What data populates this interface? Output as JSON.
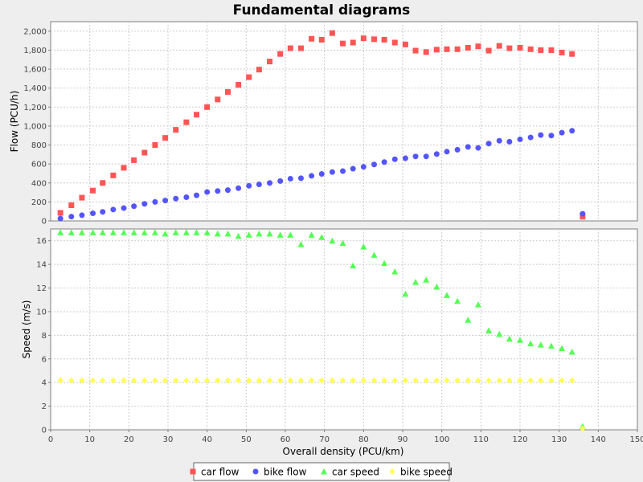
{
  "chart_data": {
    "type": "scatter",
    "title": "Fundamental diagrams",
    "xlabel": "Overall density (PCU/km)",
    "xlim": [
      0,
      150
    ],
    "xticks": [
      0,
      10,
      20,
      30,
      40,
      50,
      60,
      70,
      80,
      90,
      100,
      110,
      120,
      130,
      140,
      150
    ],
    "grid": true,
    "legend_position": "bottom",
    "plots": [
      {
        "ylabel": "Flow (PCU/h)",
        "ylim": [
          0,
          2100
        ],
        "yticks": [
          0,
          200,
          400,
          600,
          800,
          1000,
          1200,
          1400,
          1600,
          1800,
          2000
        ],
        "ytick_labels": [
          "0",
          "200",
          "400",
          "600",
          "800",
          "1,000",
          "1,200",
          "1,400",
          "1,600",
          "1,800",
          "2,000"
        ],
        "series": [
          {
            "name": "car flow",
            "marker": "square",
            "color": "#ff5555",
            "x": [
              2.5,
              5.3,
              8,
              10.8,
              13.3,
              16,
              18.7,
              21.3,
              24,
              26.7,
              29.3,
              32,
              34.7,
              37.3,
              40,
              42.7,
              45.3,
              48,
              50.7,
              53.3,
              56,
              58.7,
              61.3,
              64,
              66.7,
              69.3,
              72,
              74.7,
              77.3,
              80,
              82.7,
              85.3,
              88,
              90.7,
              93.3,
              96,
              98.7,
              101.3,
              104,
              106.7,
              109.3,
              112,
              114.7,
              117.3,
              120,
              122.7,
              125.3,
              128,
              130.7,
              133.3,
              136
            ],
            "y": [
              85,
              165,
              245,
              320,
              400,
              480,
              560,
              640,
              720,
              800,
              875,
              960,
              1040,
              1120,
              1200,
              1280,
              1360,
              1435,
              1515,
              1595,
              1680,
              1760,
              1820,
              1820,
              1920,
              1910,
              1980,
              1870,
              1880,
              1925,
              1915,
              1910,
              1880,
              1860,
              1795,
              1780,
              1805,
              1810,
              1810,
              1825,
              1840,
              1795,
              1845,
              1820,
              1825,
              1810,
              1800,
              1800,
              1775,
              1760,
              45
            ]
          },
          {
            "name": "bike flow",
            "marker": "circle",
            "color": "#5555ff",
            "x": [
              2.5,
              5.3,
              8,
              10.8,
              13.3,
              16,
              18.7,
              21.3,
              24,
              26.7,
              29.3,
              32,
              34.7,
              37.3,
              40,
              42.7,
              45.3,
              48,
              50.7,
              53.3,
              56,
              58.7,
              61.3,
              64,
              66.7,
              69.3,
              72,
              74.7,
              77.3,
              80,
              82.7,
              85.3,
              88,
              90.7,
              93.3,
              96,
              98.7,
              101.3,
              104,
              106.7,
              109.3,
              112,
              114.7,
              117.3,
              120,
              122.7,
              125.3,
              128,
              130.7,
              133.3,
              136
            ],
            "y": [
              25,
              45,
              60,
              80,
              95,
              120,
              135,
              155,
              180,
              200,
              215,
              235,
              250,
              270,
              305,
              315,
              325,
              345,
              370,
              385,
              400,
              420,
              445,
              450,
              475,
              495,
              515,
              525,
              550,
              570,
              595,
              620,
              650,
              660,
              680,
              680,
              705,
              730,
              750,
              780,
              770,
              815,
              845,
              835,
              860,
              880,
              905,
              900,
              930,
              950,
              75
            ]
          }
        ]
      },
      {
        "ylabel": "Speed (m/s)",
        "ylim": [
          0,
          17
        ],
        "yticks": [
          0,
          2,
          4,
          6,
          8,
          10,
          12,
          14,
          16
        ],
        "ytick_labels": [
          "0",
          "2",
          "4",
          "6",
          "8",
          "10",
          "12",
          "14",
          "16"
        ],
        "series": [
          {
            "name": "car speed",
            "marker": "triangle",
            "color": "#55ff55",
            "x": [
              2.5,
              5.3,
              8,
              10.8,
              13.3,
              16,
              18.7,
              21.3,
              24,
              26.7,
              29.3,
              32,
              34.7,
              37.3,
              40,
              42.7,
              45.3,
              48,
              50.7,
              53.3,
              56,
              58.7,
              61.3,
              64,
              66.7,
              69.3,
              72,
              74.7,
              77.3,
              80,
              82.7,
              85.3,
              88,
              90.7,
              93.3,
              96,
              98.7,
              101.3,
              104,
              106.7,
              109.3,
              112,
              114.7,
              117.3,
              120,
              122.7,
              125.3,
              128,
              130.7,
              133.3,
              136
            ],
            "y": [
              16.7,
              16.7,
              16.7,
              16.7,
              16.7,
              16.7,
              16.7,
              16.7,
              16.7,
              16.7,
              16.6,
              16.7,
              16.7,
              16.7,
              16.7,
              16.6,
              16.6,
              16.4,
              16.5,
              16.6,
              16.6,
              16.5,
              16.5,
              15.7,
              16.5,
              16.3,
              16.0,
              15.8,
              13.9,
              15.5,
              14.8,
              14.1,
              13.4,
              11.5,
              12.5,
              12.7,
              12.1,
              11.4,
              10.9,
              9.3,
              10.6,
              8.4,
              8.1,
              7.7,
              7.6,
              7.3,
              7.2,
              7.1,
              6.9,
              6.6,
              0.3
            ]
          },
          {
            "name": "bike speed",
            "marker": "diamond",
            "color": "#ffff55",
            "x": [
              2.5,
              5.3,
              8,
              10.8,
              13.3,
              16,
              18.7,
              21.3,
              24,
              26.7,
              29.3,
              32,
              34.7,
              37.3,
              40,
              42.7,
              45.3,
              48,
              50.7,
              53.3,
              56,
              58.7,
              61.3,
              64,
              66.7,
              69.3,
              72,
              74.7,
              77.3,
              80,
              82.7,
              85.3,
              88,
              90.7,
              93.3,
              96,
              98.7,
              101.3,
              104,
              106.7,
              109.3,
              112,
              114.7,
              117.3,
              120,
              122.7,
              125.3,
              128,
              130.7,
              133.3,
              136
            ],
            "y": [
              4.17,
              4.17,
              4.17,
              4.17,
              4.17,
              4.17,
              4.17,
              4.17,
              4.17,
              4.17,
              4.17,
              4.17,
              4.17,
              4.17,
              4.17,
              4.17,
              4.17,
              4.17,
              4.17,
              4.17,
              4.17,
              4.17,
              4.17,
              4.17,
              4.17,
              4.17,
              4.17,
              4.17,
              4.17,
              4.17,
              4.17,
              4.17,
              4.17,
              4.17,
              4.17,
              4.17,
              4.17,
              4.17,
              4.17,
              4.17,
              4.17,
              4.17,
              4.17,
              4.17,
              4.17,
              4.17,
              4.17,
              4.17,
              4.17,
              4.17,
              0.1
            ]
          }
        ]
      }
    ]
  }
}
